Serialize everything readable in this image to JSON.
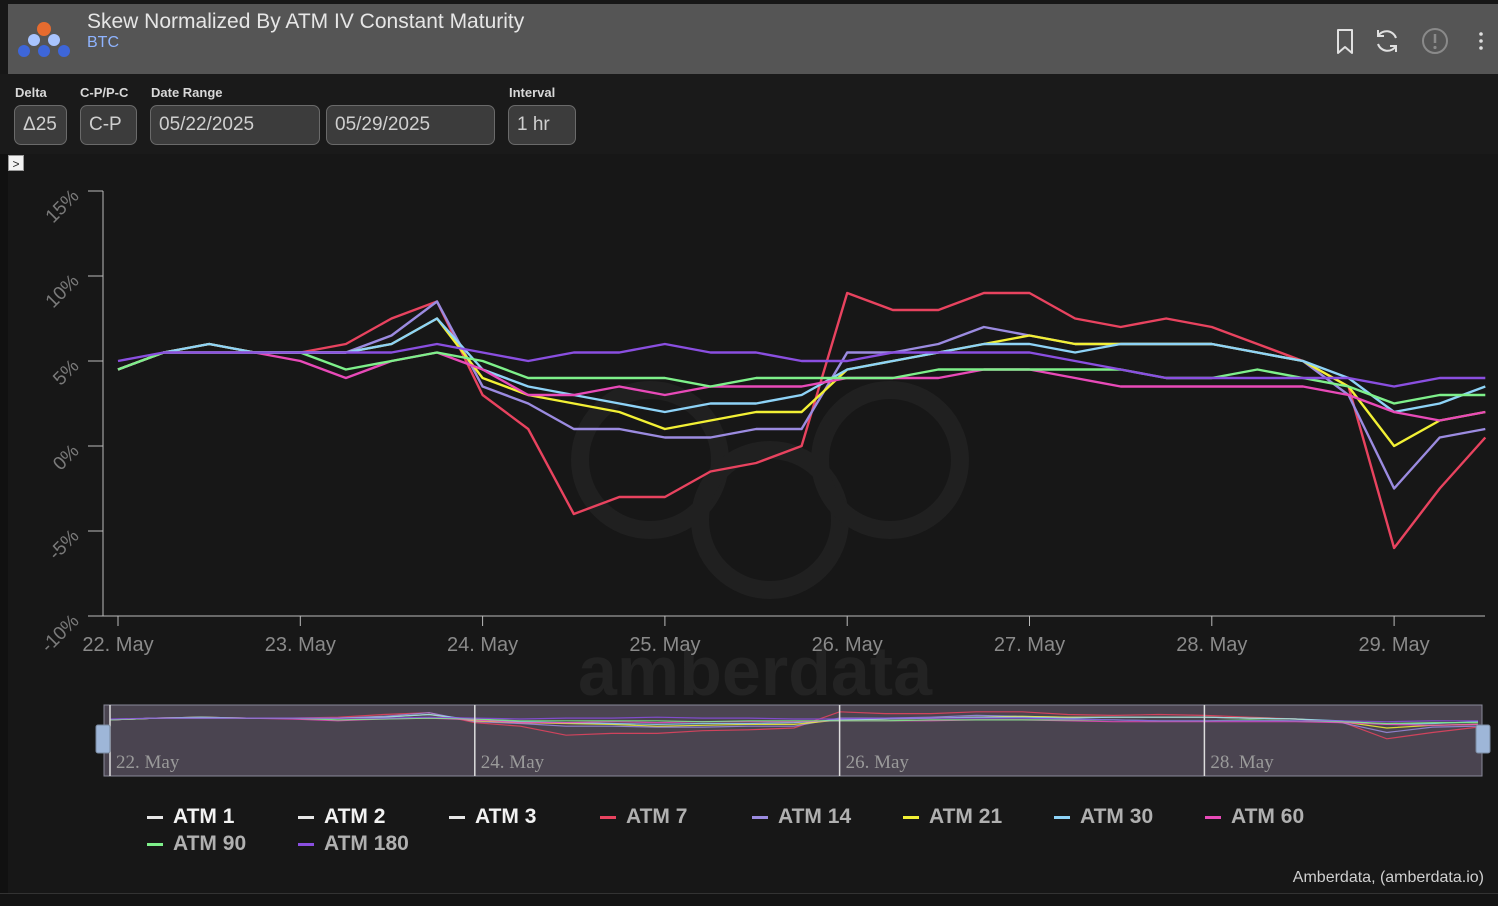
{
  "header": {
    "title": "Skew Normalized By ATM IV Constant Maturity",
    "subtitle": "BTC"
  },
  "controls": {
    "delta": {
      "label": "Delta",
      "value": "Δ25"
    },
    "cpc": {
      "label": "C-P/P-C",
      "value": "C-P"
    },
    "date_range": {
      "label": "Date Range",
      "start": "05/22/2025",
      "end": "05/29/2025"
    },
    "interval": {
      "label": "Interval",
      "value": "1 hr"
    },
    "toggle_glyph": ">"
  },
  "watermark": "amberdata",
  "credit": "Amberdata, (amberdata.io)",
  "navigator_labels": [
    "22. May",
    "24. May",
    "26. May",
    "28. May"
  ],
  "legend": [
    {
      "name": "ATM 1",
      "color": "#e6e6e6"
    },
    {
      "name": "ATM 2",
      "color": "#e6e6e6"
    },
    {
      "name": "ATM 3",
      "color": "#e6e6e6"
    },
    {
      "name": "ATM 7",
      "color": "#e8435f"
    },
    {
      "name": "ATM 14",
      "color": "#9b8be0"
    },
    {
      "name": "ATM 21",
      "color": "#f2f035"
    },
    {
      "name": "ATM 30",
      "color": "#8ed3f7"
    },
    {
      "name": "ATM 60",
      "color": "#e84ab8"
    },
    {
      "name": "ATM 90",
      "color": "#7ef08a"
    },
    {
      "name": "ATM 180",
      "color": "#8a4fe0"
    }
  ],
  "chart_data": {
    "type": "line",
    "x_start": "22. May",
    "x_end": "29. May",
    "x_ticks": [
      "22. May",
      "23. May",
      "24. May",
      "25. May",
      "26. May",
      "27. May",
      "28. May",
      "29. May"
    ],
    "y_ticks": [
      "-10%",
      "-5%",
      "0%",
      "5%",
      "10%",
      "15%"
    ],
    "ylim": [
      -10,
      15
    ],
    "grid": false,
    "legend_position": "bottom",
    "x_day_positions": [
      0,
      0.25,
      0.5,
      0.75,
      1,
      1.25,
      1.5,
      1.75,
      2,
      2.25,
      2.5,
      2.75,
      3,
      3.25,
      3.5,
      3.75,
      4,
      4.25,
      4.5,
      4.75,
      5,
      5.25,
      5.5,
      5.75,
      6,
      6.25,
      6.5,
      6.75,
      7,
      7.25,
      7.5
    ],
    "series": [
      {
        "name": "ATM 7",
        "color": "#e8435f",
        "values": [
          4.5,
          5.5,
          6.0,
          5.5,
          5.5,
          6.0,
          7.5,
          8.5,
          3.0,
          1.0,
          -4.0,
          -3.0,
          -3.0,
          -1.5,
          -1.0,
          0.0,
          9.0,
          8.0,
          8.0,
          9.0,
          9.0,
          7.5,
          7.0,
          7.5,
          7.0,
          6.0,
          5.0,
          3.5,
          -6.0,
          -2.5,
          0.5
        ]
      },
      {
        "name": "ATM 14",
        "color": "#9b8be0",
        "values": [
          4.5,
          5.5,
          6.0,
          5.5,
          5.5,
          5.5,
          6.5,
          8.5,
          3.5,
          2.5,
          1.0,
          1.0,
          0.5,
          0.5,
          1.0,
          1.0,
          5.5,
          5.5,
          6.0,
          7.0,
          6.5,
          6.0,
          6.0,
          6.0,
          6.0,
          5.5,
          5.0,
          3.0,
          -2.5,
          0.5,
          1.0
        ]
      },
      {
        "name": "ATM 21",
        "color": "#f2f035",
        "values": [
          4.5,
          5.5,
          6.0,
          5.5,
          5.5,
          5.5,
          6.0,
          7.5,
          4.0,
          3.0,
          2.5,
          2.0,
          1.0,
          1.5,
          2.0,
          2.0,
          4.5,
          5.0,
          5.5,
          6.0,
          6.5,
          6.0,
          6.0,
          6.0,
          6.0,
          5.5,
          5.0,
          3.5,
          0.0,
          1.5,
          2.0
        ]
      },
      {
        "name": "ATM 30",
        "color": "#8ed3f7",
        "values": [
          4.5,
          5.5,
          6.0,
          5.5,
          5.5,
          5.5,
          6.0,
          7.5,
          4.5,
          3.5,
          3.0,
          2.5,
          2.0,
          2.5,
          2.5,
          3.0,
          4.5,
          5.0,
          5.5,
          6.0,
          6.0,
          5.5,
          6.0,
          6.0,
          6.0,
          5.5,
          5.0,
          4.0,
          2.0,
          2.5,
          3.5
        ]
      },
      {
        "name": "ATM 60",
        "color": "#e84ab8",
        "values": [
          4.5,
          5.5,
          5.5,
          5.5,
          5.0,
          4.0,
          5.0,
          5.5,
          4.5,
          3.0,
          3.0,
          3.5,
          3.0,
          3.5,
          3.5,
          3.5,
          4.0,
          4.0,
          4.0,
          4.5,
          4.5,
          4.0,
          3.5,
          3.5,
          3.5,
          3.5,
          3.5,
          3.0,
          2.0,
          1.5,
          2.0
        ]
      },
      {
        "name": "ATM 90",
        "color": "#7ef08a",
        "values": [
          4.5,
          5.5,
          5.5,
          5.5,
          5.5,
          4.5,
          5.0,
          5.5,
          5.0,
          4.0,
          4.0,
          4.0,
          4.0,
          3.5,
          4.0,
          4.0,
          4.0,
          4.0,
          4.5,
          4.5,
          4.5,
          4.5,
          4.5,
          4.0,
          4.0,
          4.5,
          4.0,
          3.5,
          2.5,
          3.0,
          3.0
        ]
      },
      {
        "name": "ATM 180",
        "color": "#8a4fe0",
        "values": [
          5.0,
          5.5,
          5.5,
          5.5,
          5.5,
          5.5,
          5.5,
          6.0,
          5.5,
          5.0,
          5.5,
          5.5,
          6.0,
          5.5,
          5.5,
          5.0,
          5.0,
          5.5,
          5.5,
          5.5,
          5.5,
          5.0,
          4.5,
          4.0,
          4.0,
          4.0,
          4.0,
          4.0,
          3.5,
          4.0,
          4.0
        ]
      }
    ]
  }
}
